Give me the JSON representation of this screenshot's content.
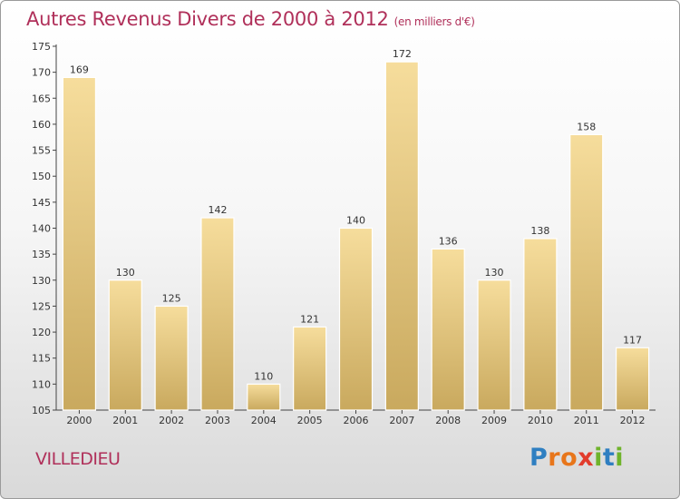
{
  "title": "Autres Revenus Divers de 2000 à 2012",
  "subtitle": "(en milliers d'€)",
  "location": "VILLEDIEU",
  "brand": {
    "letters": [
      "P",
      "r",
      "o",
      "x",
      "i",
      "t",
      "i"
    ],
    "colors": [
      "#2f7fc1",
      "#e8761b",
      "#e8761b",
      "#e23c2c",
      "#6fb32b",
      "#2f7fc1",
      "#6fb32b"
    ]
  },
  "colors": {
    "title": "#b0305a",
    "bar_light": "#f6dd9c",
    "bar_dark": "#c9a95e"
  },
  "chart_data": {
    "type": "bar",
    "title": "Autres Revenus Divers de 2000 à 2012",
    "subtitle": "(en milliers d'€)",
    "categories": [
      "2000",
      "2001",
      "2002",
      "2003",
      "2004",
      "2005",
      "2006",
      "2007",
      "2008",
      "2009",
      "2010",
      "2011",
      "2012"
    ],
    "values": [
      169,
      130,
      125,
      142,
      110,
      121,
      140,
      172,
      136,
      130,
      138,
      158,
      117
    ],
    "ylim": [
      105,
      175
    ],
    "yticks": [
      105,
      110,
      115,
      120,
      125,
      130,
      135,
      140,
      145,
      150,
      155,
      160,
      165,
      170,
      175
    ],
    "grid": false,
    "legend": "none"
  }
}
